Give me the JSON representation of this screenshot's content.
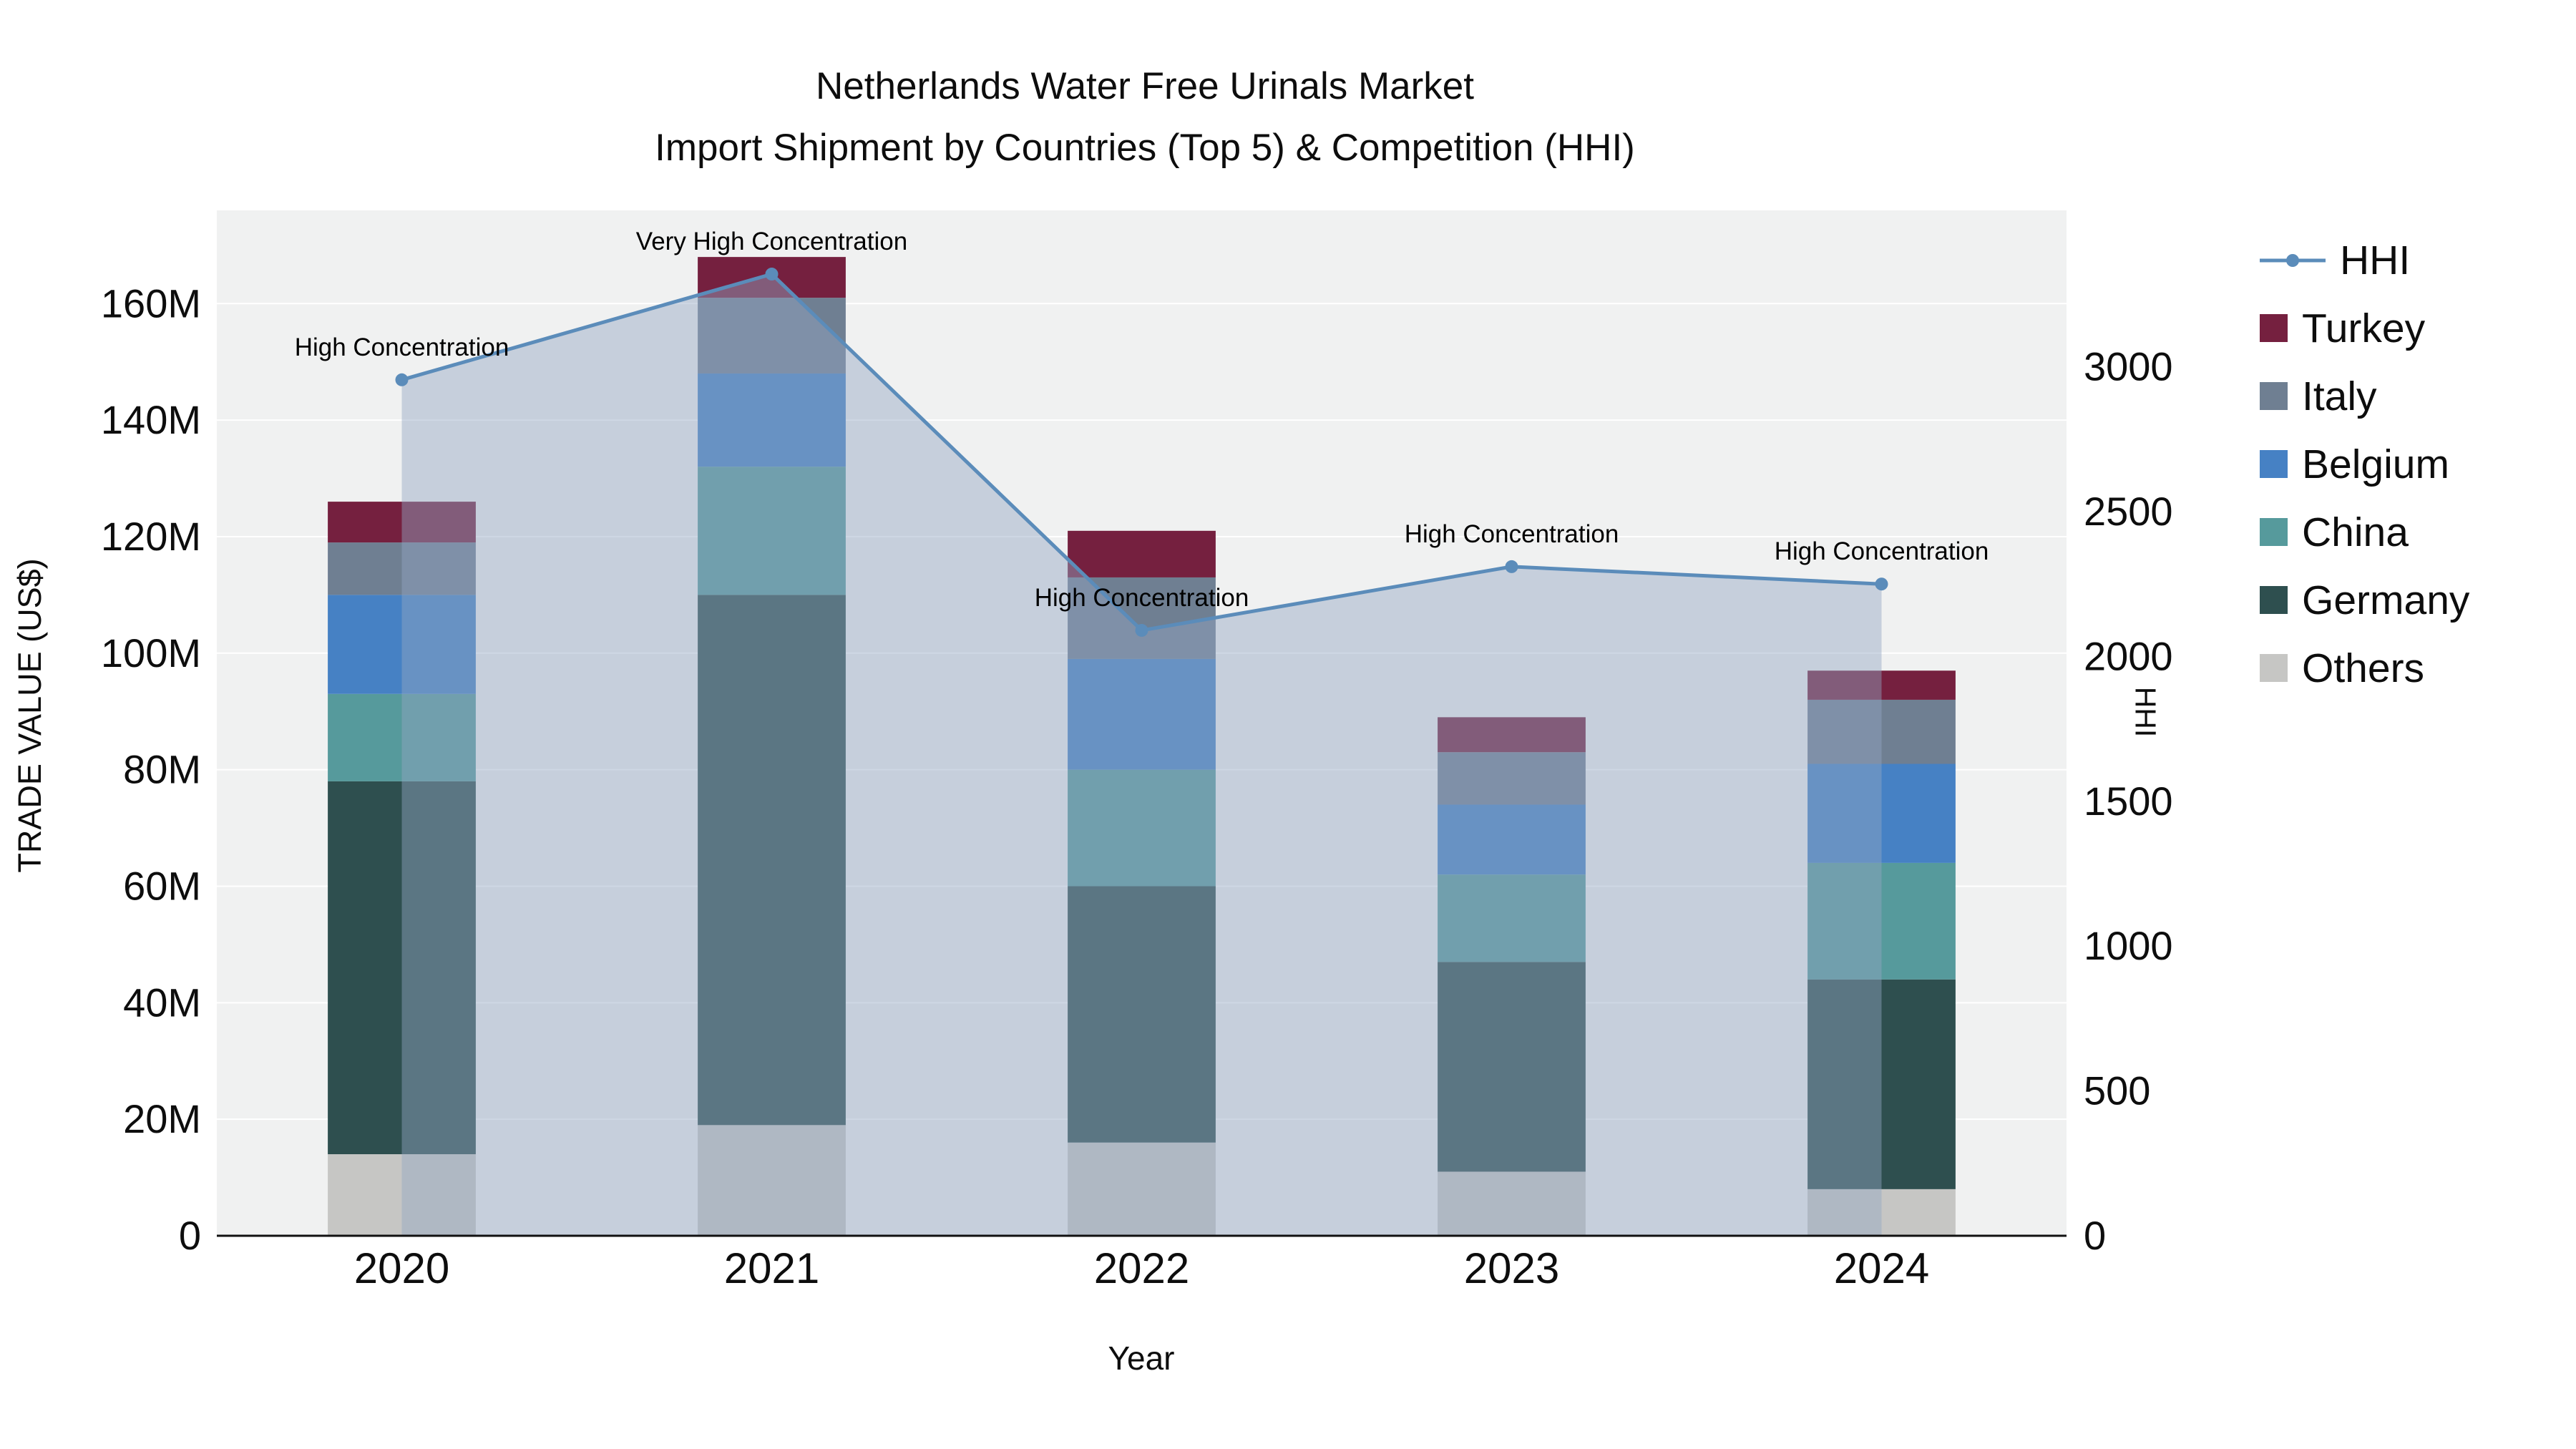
{
  "title": {
    "line1": "Netherlands Water Free Urinals Market",
    "line2": "Import Shipment by Countries (Top 5) & Competition (HHI)"
  },
  "chart_data": {
    "type": "bar",
    "stacked": true,
    "subtype": "stacked bars (left axis) with HHI line + shaded area (right axis)",
    "categories": [
      "2020",
      "2021",
      "2022",
      "2023",
      "2024"
    ],
    "bar_value_unit": "US$ millions",
    "series": [
      {
        "name": "Others",
        "color": "#c6c6c4",
        "values": [
          14,
          19,
          16,
          11,
          8
        ]
      },
      {
        "name": "Germany",
        "color": "#2e4f4f",
        "values": [
          64,
          91,
          44,
          36,
          36
        ]
      },
      {
        "name": "China",
        "color": "#569a9c",
        "values": [
          15,
          22,
          20,
          15,
          20
        ]
      },
      {
        "name": "Belgium",
        "color": "#4681c4",
        "values": [
          17,
          16,
          19,
          12,
          17
        ]
      },
      {
        "name": "Italy",
        "color": "#6f7f92",
        "values": [
          9,
          13,
          14,
          9,
          11
        ]
      },
      {
        "name": "Turkey",
        "color": "#75203f",
        "values": [
          7,
          7,
          8,
          6,
          5
        ]
      }
    ],
    "bar_totals": [
      126,
      168,
      121,
      89,
      97
    ],
    "line_series": {
      "name": "HHI",
      "color": "#5b8cba",
      "area_color": "rgba(146,166,196,0.45)",
      "values": [
        2955,
        3320,
        2090,
        2310,
        2250
      ]
    },
    "annotations": [
      {
        "x": "2020",
        "text": "High Concentration"
      },
      {
        "x": "2021",
        "text": "Very High Concentration"
      },
      {
        "x": "2022",
        "text": "High Concentration"
      },
      {
        "x": "2023",
        "text": "High Concentration"
      },
      {
        "x": "2024",
        "text": "High Concentration"
      }
    ],
    "axes": {
      "x_title": "Year",
      "y_left": {
        "title": "TRADE VALUE (US$)",
        "max": 176,
        "tick_values": [
          0,
          20,
          40,
          60,
          80,
          100,
          120,
          140,
          160
        ],
        "tick_labels": [
          "0",
          "20M",
          "40M",
          "60M",
          "80M",
          "100M",
          "120M",
          "140M",
          "160M"
        ]
      },
      "y_right": {
        "title": "HHI",
        "max": 3540,
        "tick_values": [
          0,
          500,
          1000,
          1500,
          2000,
          2500,
          3000
        ],
        "tick_labels": [
          "0",
          "500",
          "1000",
          "1500",
          "2000",
          "2500",
          "3000"
        ]
      }
    },
    "legend_position": "right",
    "grid": true,
    "legend_order": [
      "HHI",
      "Turkey",
      "Italy",
      "Belgium",
      "China",
      "Germany",
      "Others"
    ]
  }
}
